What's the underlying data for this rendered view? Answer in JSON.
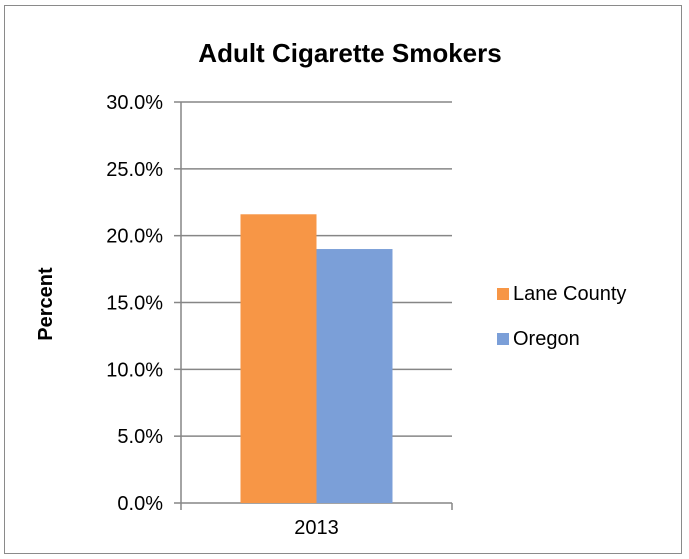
{
  "chart_data": {
    "type": "bar",
    "title": "Adult Cigarette Smokers",
    "xlabel": "",
    "ylabel": "Percent",
    "categories": [
      "2013"
    ],
    "ylim": [
      0,
      30
    ],
    "yticks": [
      "0.0%",
      "5.0%",
      "10.0%",
      "15.0%",
      "20.0%",
      "25.0%",
      "30.0%"
    ],
    "grid": true,
    "legend_position": "right",
    "series": [
      {
        "name": "Lane County",
        "values": [
          21.6
        ],
        "color": "#f79646"
      },
      {
        "name": "Oregon",
        "values": [
          19.0
        ],
        "color": "#7b9fd8"
      }
    ]
  }
}
